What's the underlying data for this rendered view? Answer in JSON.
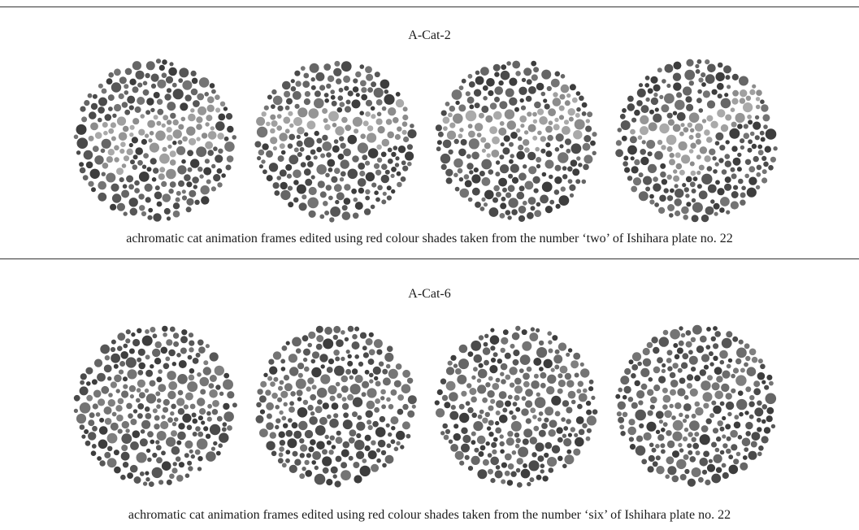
{
  "panels": [
    {
      "title": "A-Cat-2",
      "caption": "achromatic cat animation frames edited using red colour shades taken from the number ‘two’ of Ishihara plate no. 22",
      "frame_count": 4
    },
    {
      "title": "A-Cat-6",
      "caption": "achromatic cat animation frames edited using red colour shades taken from the number ‘six’ of Ishihara plate no. 22",
      "frame_count": 4
    }
  ],
  "colors": {
    "background_dots": [
      "#3d3d3d",
      "#4a4a4a",
      "#575757",
      "#666666",
      "#747474"
    ],
    "figure_dots_panel1": [
      "#8c8c8c",
      "#969696",
      "#a0a0a0",
      "#aaaaaa"
    ],
    "figure_dots_panel2": [
      "#6c6c6c",
      "#767676",
      "#808080"
    ],
    "rule": "#333333"
  }
}
